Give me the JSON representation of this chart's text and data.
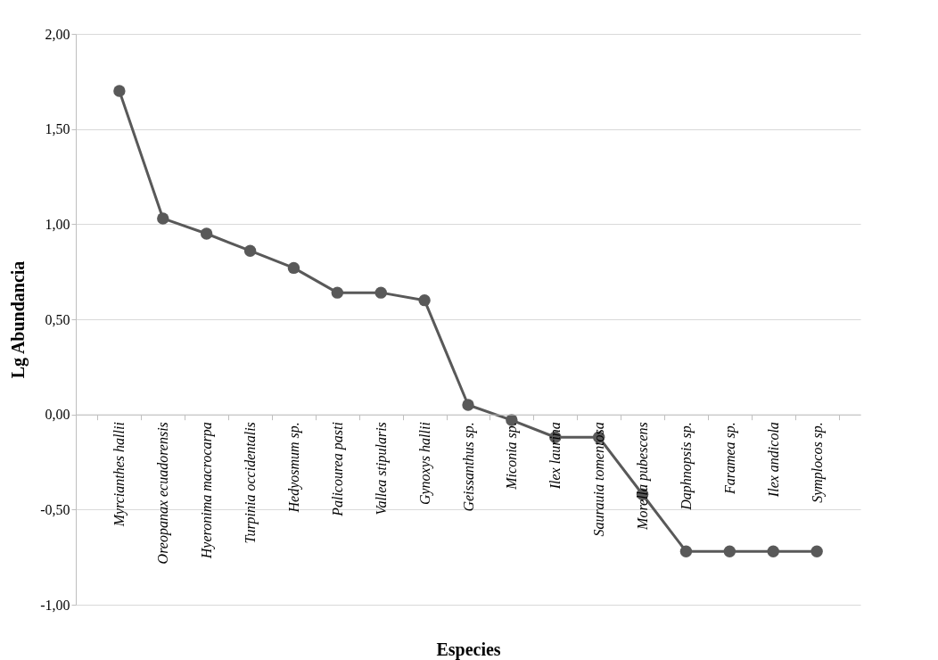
{
  "chart_data": {
    "type": "line",
    "xlabel": "Especies",
    "ylabel": "Lg Abundancia",
    "categories": [
      "Myrcianthes hallii",
      "Oreopanax ecuadorensis",
      "Hyeronima macrocarpa",
      "Turpinia occidentalis",
      "Hedyosmum sp.",
      "Palicourea pasti",
      "Vallea stipularis",
      "Gynoxys hallii",
      "Geissanthus sp.",
      "Miconia sp.",
      "Ilex  laurina",
      "Saurauia tomentosa",
      "Morella  pubescens",
      "Daphnopsis sp.",
      "Faramea sp.",
      "Ilex  andicola",
      "Symplocos sp."
    ],
    "series": [
      {
        "color": "#595959",
        "values": [
          1.7,
          1.03,
          0.95,
          0.86,
          0.77,
          0.64,
          0.64,
          0.6,
          0.05,
          -0.03,
          -0.12,
          -0.12,
          -0.42,
          -0.72,
          -0.72,
          -0.72,
          -0.72
        ]
      }
    ],
    "ylim": [
      -1,
      2
    ],
    "yticks": [
      {
        "value": -1,
        "label": "-1,00"
      },
      {
        "value": -0.5,
        "label": "-0,50"
      },
      {
        "value": 0,
        "label": "0,00"
      },
      {
        "value": 0.5,
        "label": "0,50"
      },
      {
        "value": 1,
        "label": "1,00"
      },
      {
        "value": 1.5,
        "label": "1,50"
      },
      {
        "value": 2,
        "label": "2,00"
      }
    ],
    "grid": "y",
    "marker": "circle",
    "line_style": "solid"
  }
}
